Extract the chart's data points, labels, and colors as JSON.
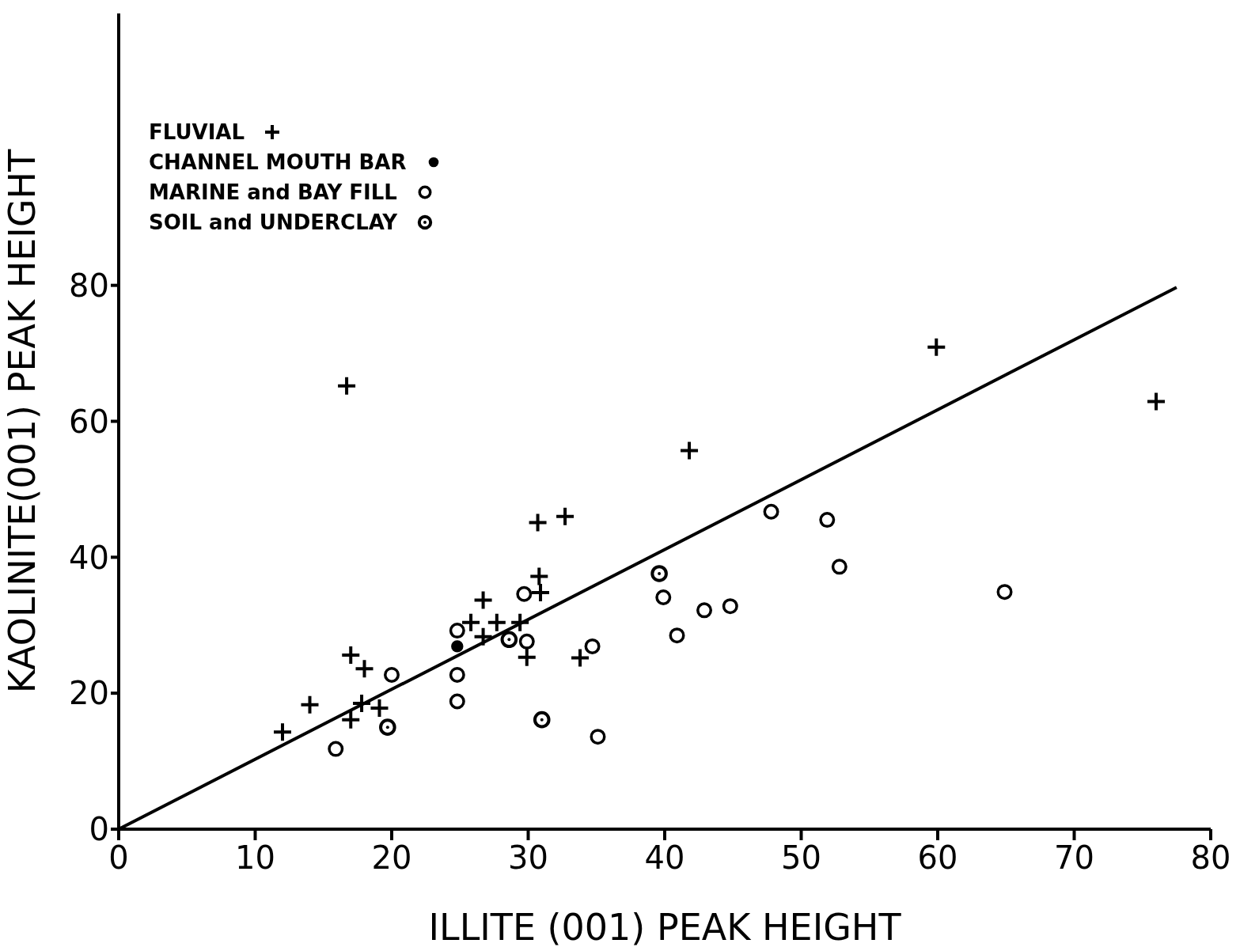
{
  "chart_data": {
    "type": "scatter",
    "xlabel": "ILLITE (001) PEAK HEIGHT",
    "ylabel": "KAOLINITE(001) PEAK HEIGHT",
    "xlim": [
      0,
      80
    ],
    "xticks": [
      0,
      10,
      20,
      30,
      40,
      50,
      60,
      70,
      80
    ],
    "ylim": [
      0,
      120
    ],
    "yticks": [
      0,
      20,
      40,
      60,
      80
    ],
    "grid": false,
    "legend": "top left",
    "series": [
      {
        "name": "FLUVIAL",
        "color": "#000000",
        "marker": "cross",
        "x": [
          12.0,
          14.0,
          17.0,
          17.0,
          18.0,
          17.8,
          19.1,
          16.7,
          25.8,
          26.7,
          26.7,
          27.7,
          29.4,
          29.9,
          30.7,
          30.8,
          30.9,
          32.7,
          33.8,
          41.8,
          59.9,
          76.0
        ],
        "values": [
          14.3,
          18.3,
          16.1,
          25.6,
          23.6,
          18.5,
          17.8,
          65.2,
          30.4,
          33.7,
          28.3,
          30.4,
          30.4,
          25.3,
          45.1,
          37.2,
          34.8,
          46.0,
          25.2,
          55.7,
          70.9,
          62.9
        ]
      },
      {
        "name": "CHANNEL MOUTH BAR",
        "color": "#000000",
        "marker": "circle",
        "x": [
          24.8
        ],
        "values": [
          26.9
        ]
      },
      {
        "name": "MARINE and BAY FILL",
        "color": "#000000",
        "marker": "circle",
        "x": [
          15.9,
          20.0,
          24.8,
          24.8,
          24.8,
          29.7,
          29.9,
          34.7,
          35.1,
          39.9,
          40.9,
          42.9,
          44.8,
          47.8,
          51.9,
          52.8,
          64.9
        ],
        "values": [
          11.8,
          22.7,
          29.2,
          22.7,
          18.8,
          34.6,
          27.6,
          26.9,
          13.6,
          34.1,
          28.5,
          32.2,
          32.8,
          46.7,
          45.5,
          38.6,
          34.9
        ]
      },
      {
        "name": "SOIL and UNDERCLAY",
        "color": "#000000",
        "marker": "circle",
        "x": [
          19.7,
          28.6,
          31.0,
          39.6
        ],
        "values": [
          15.0,
          27.9,
          16.1,
          37.6
        ]
      },
      {
        "type": "line",
        "color": "#000000",
        "marker": "none",
        "x": [
          0,
          77.5
        ],
        "values": [
          0,
          79.7
        ]
      }
    ]
  }
}
